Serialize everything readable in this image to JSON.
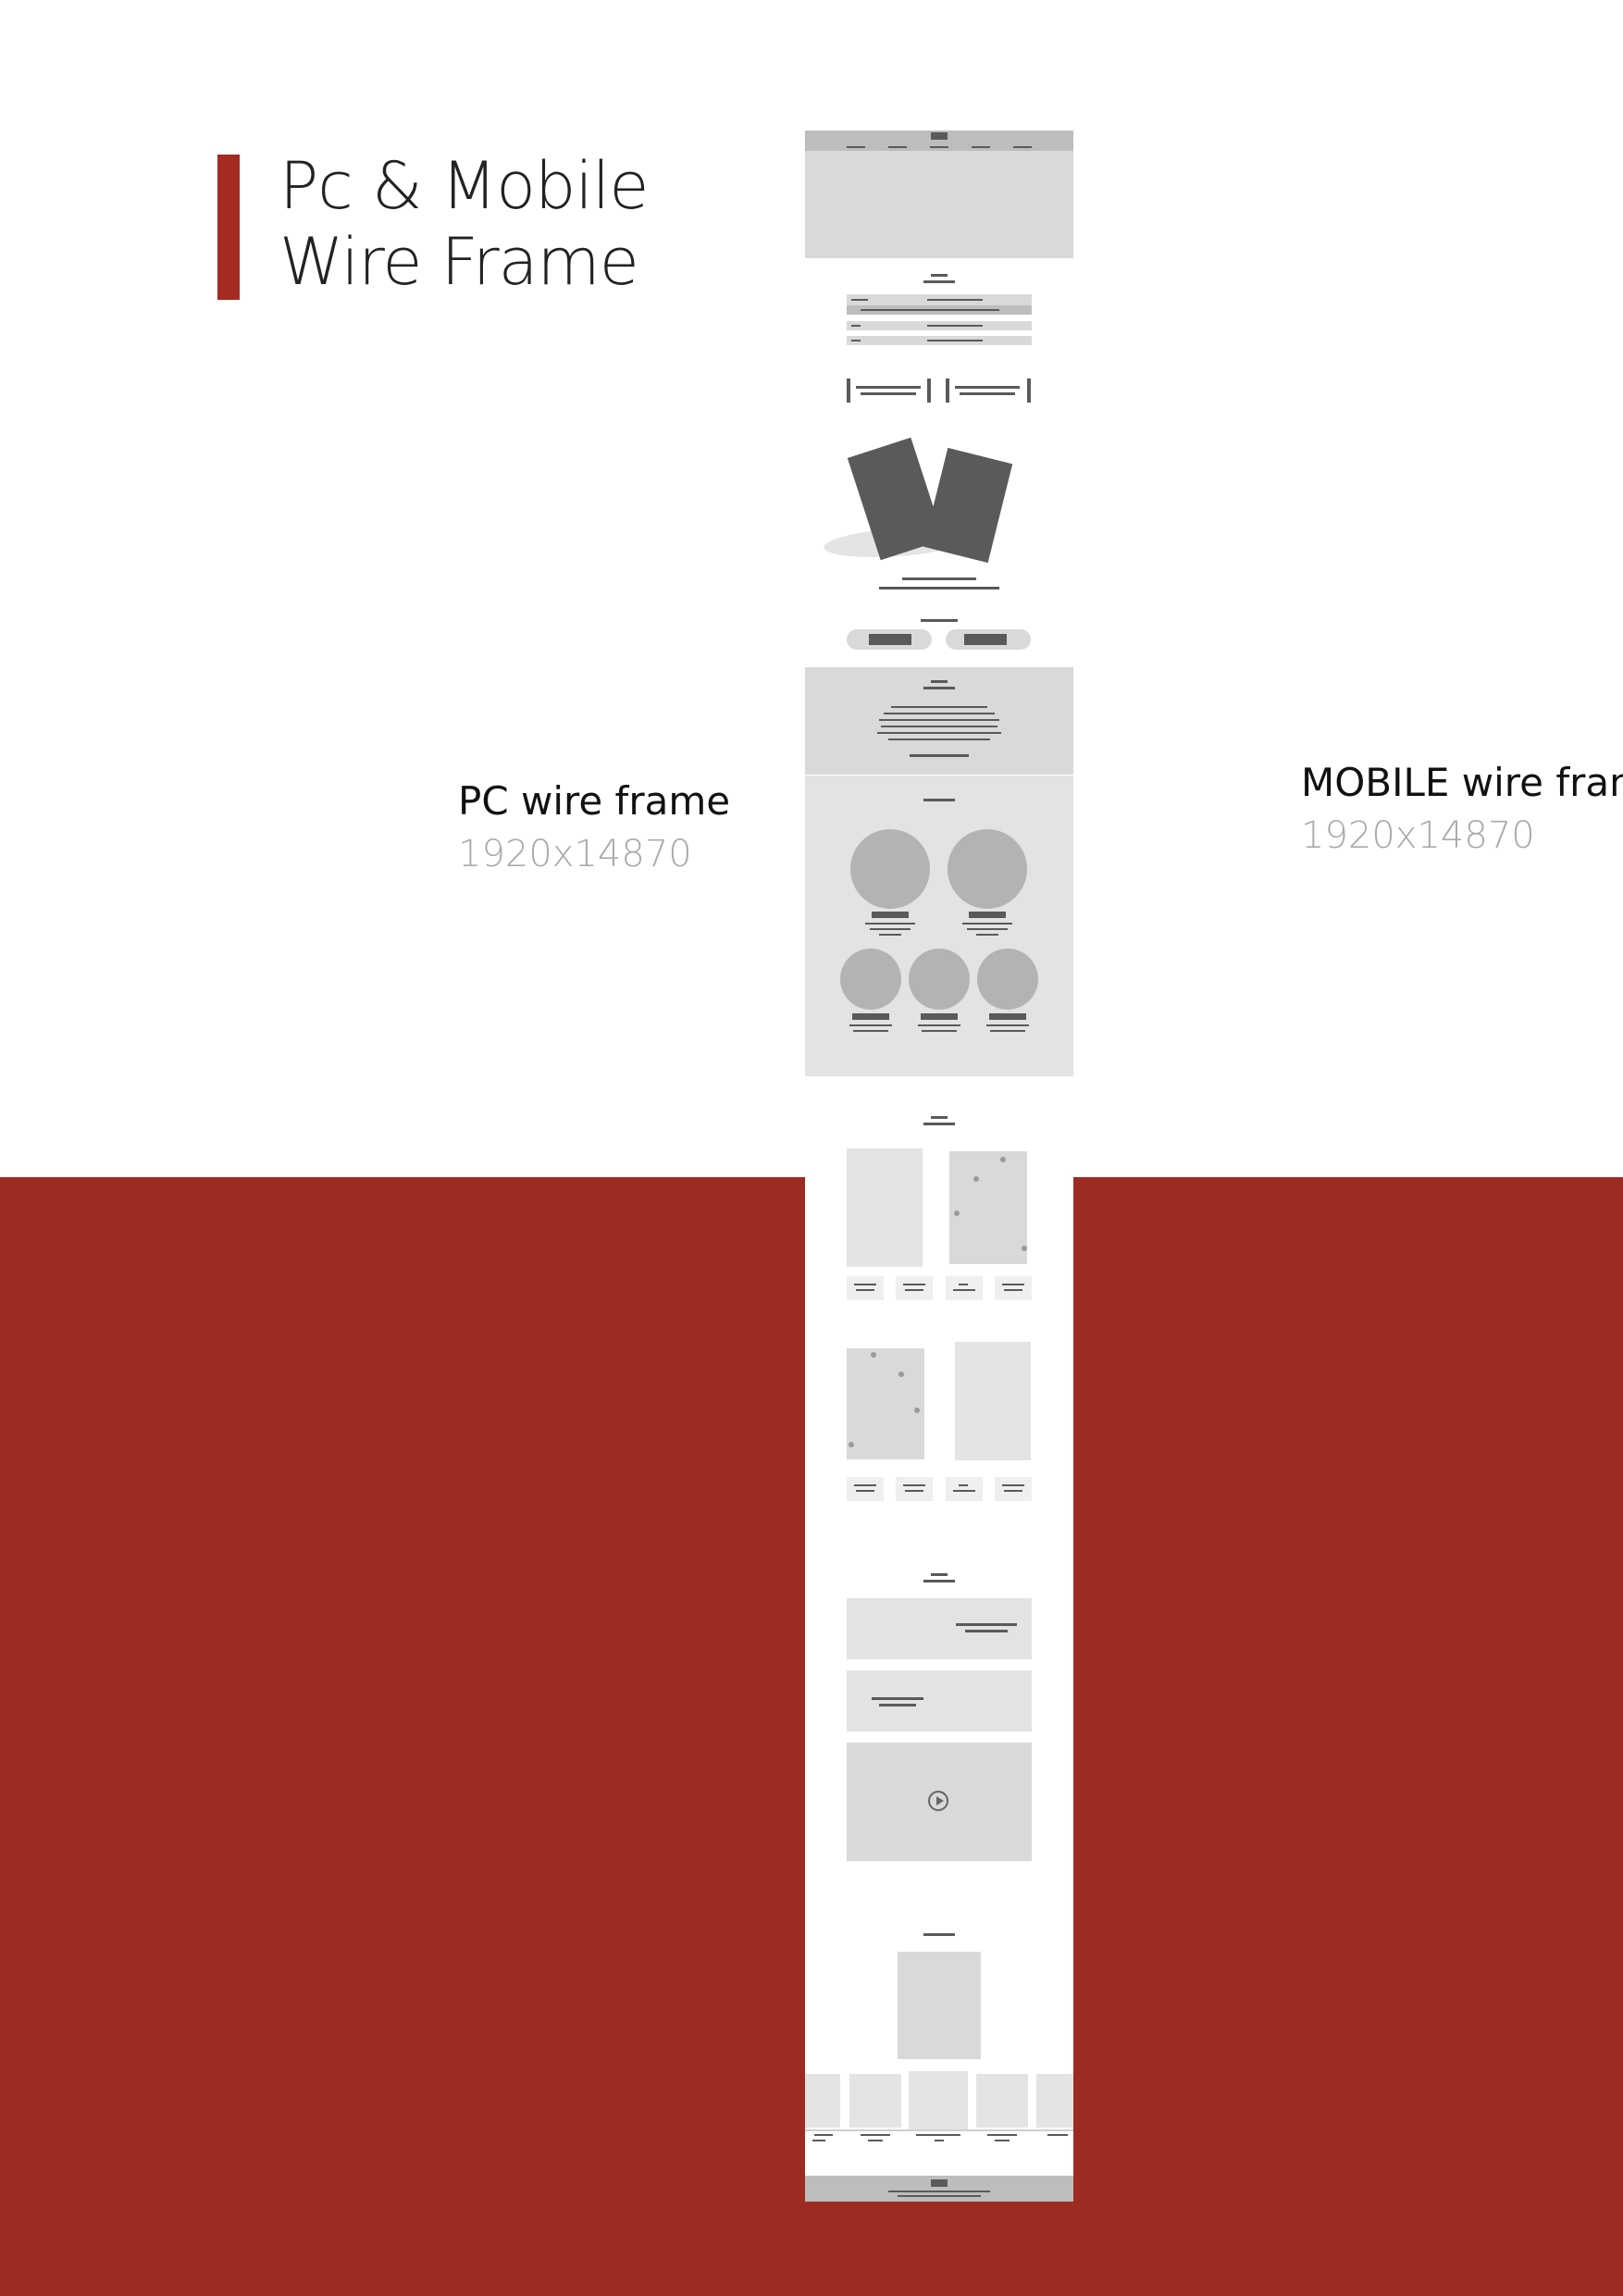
{
  "title": {
    "line1": "Pc & Mobile",
    "line2": "Wire Frame"
  },
  "pc": {
    "label": "PC wire frame",
    "size": "1920x14870"
  },
  "mobile": {
    "label": "MOBILE wire fran",
    "size": "1920x14870"
  },
  "colors": {
    "accent": "#a42b22",
    "background_red": "#9e2b22",
    "wire_light": "#d9d9d9",
    "wire_mid": "#bdbdbd",
    "wire_dark": "#5a5a5a"
  },
  "icons": {
    "play": "play-button-icon"
  }
}
